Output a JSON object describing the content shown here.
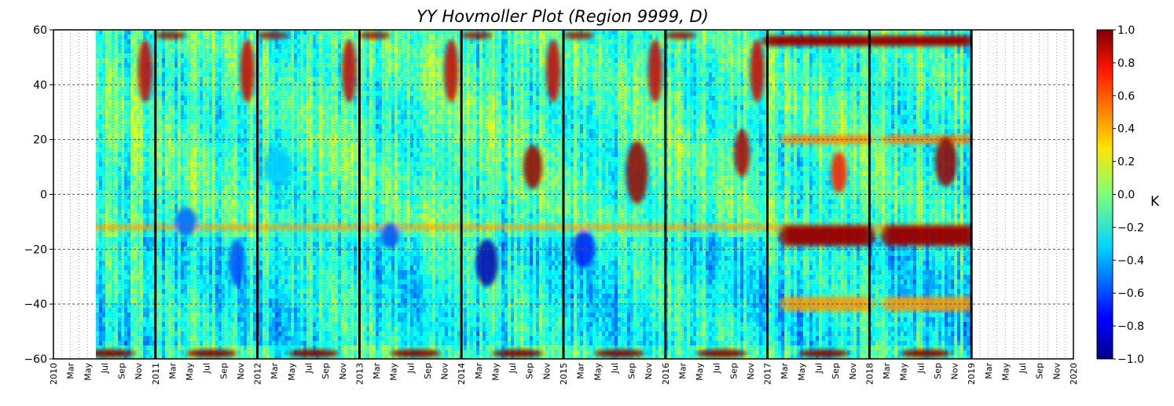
{
  "chart_data": {
    "type": "heatmap",
    "title": "YY Hovmoller Plot (Region 9999, D)",
    "xlabel": "",
    "ylabel": "",
    "ylim": [
      -60,
      60
    ],
    "y_ticks": [
      "60",
      "40",
      "20",
      "0",
      "−20",
      "−40",
      "−60"
    ],
    "y_tick_values": [
      60,
      40,
      20,
      0,
      -20,
      -40,
      -60
    ],
    "x_range": [
      "2010-01",
      "2020-01"
    ],
    "data_range": [
      "2010-06",
      "2018-12"
    ],
    "year_labels": [
      "2010",
      "2011",
      "2012",
      "2013",
      "2014",
      "2015",
      "2016",
      "2017",
      "2018",
      "2019",
      "2020"
    ],
    "month_labels": [
      "Mar",
      "May",
      "Jul",
      "Sep",
      "Nov"
    ],
    "year_boundaries": [
      "2011",
      "2012",
      "2013",
      "2014",
      "2015",
      "2016",
      "2017",
      "2018",
      "2019"
    ],
    "colorbar": {
      "label": "K",
      "range": [
        -1.0,
        1.0
      ],
      "ticks": [
        "1.0",
        "0.8",
        "0.6",
        "0.4",
        "0.2",
        "0.0",
        "−0.2",
        "−0.4",
        "−0.6",
        "−0.8",
        "−1.0"
      ],
      "tick_values": [
        1.0,
        0.8,
        0.6,
        0.4,
        0.2,
        0.0,
        -0.2,
        -0.4,
        -0.6,
        -0.8,
        -1.0
      ],
      "colormap": "jet"
    },
    "grid": true,
    "features": [
      {
        "latitude_band": [
          -62,
          -56
        ],
        "value": 1.0,
        "note": "recurring positive near southern edge each year"
      },
      {
        "latitude_band": [
          -14,
          -10
        ],
        "value": 0.4,
        "note": "persistent positive band"
      },
      {
        "latitude_band": [
          -22,
          -10
        ],
        "years": [
          "2017",
          "2018"
        ],
        "value": 0.9
      },
      {
        "latitude_band": [
          50,
          60
        ],
        "years": [
          "2017",
          "2018"
        ],
        "value": 0.9
      },
      {
        "latitude_band": [
          -10,
          20
        ],
        "years": [
          "2014",
          "2015",
          "2016",
          "2018"
        ],
        "value": 0.8
      }
    ]
  },
  "colors": {
    "frame": "#000000",
    "grid": "#555555",
    "background": "#ffffff"
  }
}
